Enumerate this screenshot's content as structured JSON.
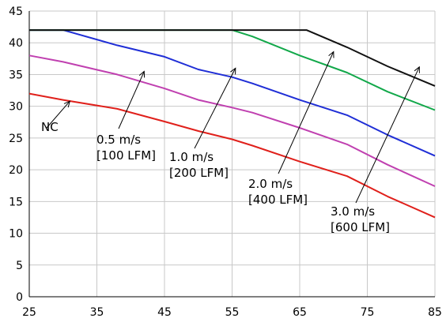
{
  "chart_data": {
    "type": "line",
    "xlim": [
      25,
      85
    ],
    "ylim": [
      0,
      45
    ],
    "x_ticks": [
      25,
      35,
      45,
      55,
      65,
      75,
      85
    ],
    "y_ticks": [
      0,
      5,
      10,
      15,
      20,
      25,
      30,
      35,
      40,
      45
    ],
    "grid": true,
    "legend": "none",
    "series": [
      {
        "color": "#e0201b",
        "points": [
          [
            25,
            32
          ],
          [
            30,
            31
          ],
          [
            38,
            29.6
          ],
          [
            45,
            27.6
          ],
          [
            50,
            26.1
          ],
          [
            55,
            24.8
          ],
          [
            58,
            23.8
          ],
          [
            65,
            21.3
          ],
          [
            72,
            19
          ],
          [
            78,
            15.8
          ],
          [
            85,
            12.5
          ]
        ]
      },
      {
        "color": "#c040b0",
        "points": [
          [
            25,
            38
          ],
          [
            30,
            37
          ],
          [
            38,
            35
          ],
          [
            45,
            32.8
          ],
          [
            50,
            31
          ],
          [
            55,
            29.8
          ],
          [
            58,
            29
          ],
          [
            65,
            26.6
          ],
          [
            72,
            24
          ],
          [
            78,
            20.8
          ],
          [
            85,
            17.4
          ]
        ]
      },
      {
        "color": "#1f2ed6",
        "points": [
          [
            25,
            42
          ],
          [
            30,
            42
          ],
          [
            38,
            39.6
          ],
          [
            45,
            37.8
          ],
          [
            50,
            35.8
          ],
          [
            55,
            34.6
          ],
          [
            58,
            33.6
          ],
          [
            65,
            31
          ],
          [
            72,
            28.6
          ],
          [
            78,
            25.5
          ],
          [
            85,
            22.2
          ]
        ]
      },
      {
        "color": "#12a84a",
        "points": [
          [
            25,
            42
          ],
          [
            55,
            42
          ],
          [
            58,
            41
          ],
          [
            65,
            38
          ],
          [
            72,
            35.3
          ],
          [
            78,
            32.3
          ],
          [
            85,
            29.4
          ]
        ]
      },
      {
        "color": "#111111",
        "points": [
          [
            25,
            42
          ],
          [
            66,
            42
          ],
          [
            72,
            39.3
          ],
          [
            78,
            36.3
          ],
          [
            85,
            33.2
          ]
        ]
      }
    ],
    "annotations": [
      {
        "lines": [
          "NC"
        ],
        "target": [
          31,
          30.8
        ]
      },
      {
        "lines": [
          "0.5 m/s",
          "[100 LFM]"
        ],
        "target": [
          42,
          35.5
        ]
      },
      {
        "lines": [
          "1.0 m/s",
          "[200 LFM]"
        ],
        "target": [
          55.5,
          36
        ]
      },
      {
        "lines": [
          "2.0 m/s",
          "[400 LFM]"
        ],
        "target": [
          70,
          38.6
        ]
      },
      {
        "lines": [
          "3.0 m/s",
          "[600 LFM]"
        ],
        "target": [
          82.7,
          36.2
        ]
      }
    ]
  }
}
